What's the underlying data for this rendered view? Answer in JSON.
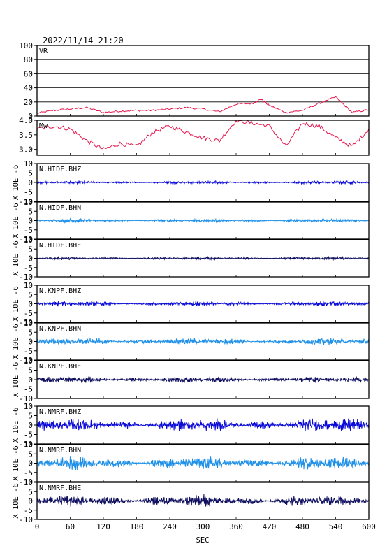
{
  "title": "2022/11/14 21:20",
  "x_axis": {
    "label": "SEC",
    "range": [
      0,
      600
    ],
    "ticks": [
      0,
      60,
      120,
      180,
      240,
      300,
      360,
      420,
      480,
      540,
      600
    ]
  },
  "chart_data": [
    {
      "type": "line",
      "label": "VR",
      "ylim": [
        0,
        100
      ],
      "yticks": [
        0,
        20,
        40,
        60,
        80,
        100
      ],
      "grid": true,
      "color": "#e8174d",
      "series": [
        {
          "x": [
            0,
            30,
            60,
            90,
            120,
            150,
            180,
            210,
            240,
            270,
            300,
            330,
            360,
            390,
            405,
            420,
            450,
            480,
            510,
            540,
            570,
            600
          ],
          "values": [
            4,
            8,
            10,
            12,
            5,
            7,
            8,
            8,
            10,
            12,
            10,
            6,
            17,
            18,
            24,
            15,
            5,
            8,
            18,
            27,
            5,
            9
          ]
        }
      ]
    },
    {
      "type": "line",
      "label": "Mw",
      "ylim": [
        2.8,
        4.0
      ],
      "yticks": [
        3.0,
        3.5,
        4.0
      ],
      "color": "#e8174d",
      "series": [
        {
          "x": [
            0,
            30,
            60,
            90,
            120,
            150,
            180,
            210,
            240,
            270,
            300,
            330,
            360,
            390,
            420,
            450,
            480,
            510,
            540,
            570,
            600
          ],
          "values": [
            3.7,
            3.8,
            3.7,
            3.3,
            3.0,
            3.2,
            3.1,
            3.6,
            3.8,
            3.6,
            3.4,
            3.3,
            4.0,
            3.9,
            3.8,
            3.1,
            3.9,
            3.8,
            3.4,
            3.1,
            3.7
          ]
        }
      ]
    },
    {
      "type": "line",
      "label": "N.HIDF.BHZ",
      "ylim": [
        -10,
        10
      ],
      "yticks": [
        -10,
        -5,
        0,
        5,
        10
      ],
      "color": "#0b0bd8",
      "amplitude": 0.6
    },
    {
      "type": "line",
      "label": "N.HIDF.BHN",
      "ylim": [
        -10,
        10
      ],
      "yticks": [
        -10,
        -5,
        0,
        5,
        10
      ],
      "color": "#1e90e8",
      "amplitude": 0.7
    },
    {
      "type": "line",
      "label": "N.HIDF.BHE",
      "ylim": [
        -10,
        10
      ],
      "yticks": [
        -10,
        -5,
        0,
        5,
        10
      ],
      "color": "#101060",
      "amplitude": 0.6
    },
    {
      "type": "line",
      "label": "N.KNPF.BHZ",
      "ylim": [
        -10,
        10
      ],
      "yticks": [
        -10,
        -5,
        0,
        5,
        10
      ],
      "color": "#0b0bd8",
      "amplitude": 1.0
    },
    {
      "type": "line",
      "label": "N.KNPF.BHN",
      "ylim": [
        -10,
        10
      ],
      "yticks": [
        -10,
        -5,
        0,
        5,
        10
      ],
      "color": "#1e90e8",
      "amplitude": 1.4
    },
    {
      "type": "line",
      "label": "N.KNPF.BHE",
      "ylim": [
        -10,
        10
      ],
      "yticks": [
        -10,
        -5,
        0,
        5,
        10
      ],
      "color": "#101060",
      "amplitude": 1.2
    },
    {
      "type": "line",
      "label": "N.NMRF.BHZ",
      "ylim": [
        -10,
        10
      ],
      "yticks": [
        -10,
        -5,
        0,
        5,
        10
      ],
      "color": "#0b0bd8",
      "amplitude": 2.6
    },
    {
      "type": "line",
      "label": "N.NMRF.BHN",
      "ylim": [
        -10,
        10
      ],
      "yticks": [
        -10,
        -5,
        0,
        5,
        10
      ],
      "color": "#1e90e8",
      "amplitude": 2.6
    },
    {
      "type": "line",
      "label": "N.NMRF.BHE",
      "ylim": [
        -10,
        10
      ],
      "yticks": [
        -10,
        -5,
        0,
        5,
        10
      ],
      "color": "#101060",
      "amplitude": 2.3
    }
  ],
  "seismogram_ylabel": "X 10E -6"
}
